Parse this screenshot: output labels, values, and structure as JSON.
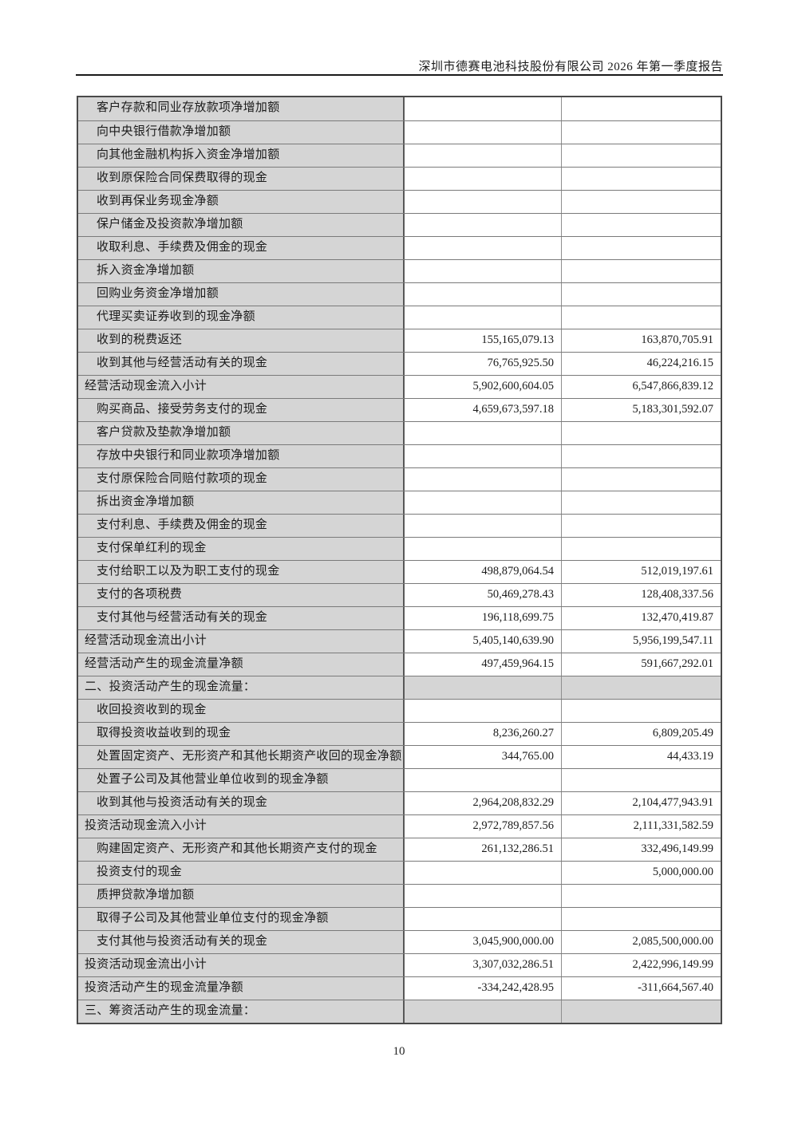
{
  "page": {
    "header_title": "深圳市德赛电池科技股份有限公司 2026 年第一季度报告",
    "page_number": "10"
  },
  "colors": {
    "cell_gray": "#d5d5d5",
    "border_dark": "#4a4a4a",
    "border_light": "#8f8f8f",
    "text": "#1b1b1b"
  },
  "table": {
    "rows": [
      {
        "label": "客户存款和同业存放款项净增加额",
        "indent": true,
        "section": false,
        "values": [
          "",
          ""
        ]
      },
      {
        "label": "向中央银行借款净增加额",
        "indent": true,
        "section": false,
        "values": [
          "",
          ""
        ]
      },
      {
        "label": "向其他金融机构拆入资金净增加额",
        "indent": true,
        "section": false,
        "values": [
          "",
          ""
        ]
      },
      {
        "label": "收到原保险合同保费取得的现金",
        "indent": true,
        "section": false,
        "values": [
          "",
          ""
        ]
      },
      {
        "label": "收到再保业务现金净额",
        "indent": true,
        "section": false,
        "values": [
          "",
          ""
        ]
      },
      {
        "label": "保户储金及投资款净增加额",
        "indent": true,
        "section": false,
        "values": [
          "",
          ""
        ]
      },
      {
        "label": "收取利息、手续费及佣金的现金",
        "indent": true,
        "section": false,
        "values": [
          "",
          ""
        ]
      },
      {
        "label": "拆入资金净增加额",
        "indent": true,
        "section": false,
        "values": [
          "",
          ""
        ]
      },
      {
        "label": "回购业务资金净增加额",
        "indent": true,
        "section": false,
        "values": [
          "",
          ""
        ]
      },
      {
        "label": "代理买卖证券收到的现金净额",
        "indent": true,
        "section": false,
        "values": [
          "",
          ""
        ]
      },
      {
        "label": "收到的税费返还",
        "indent": true,
        "section": false,
        "values": [
          "155,165,079.13",
          "163,870,705.91"
        ]
      },
      {
        "label": "收到其他与经营活动有关的现金",
        "indent": true,
        "section": false,
        "values": [
          "76,765,925.50",
          "46,224,216.15"
        ]
      },
      {
        "label": "经营活动现金流入小计",
        "indent": false,
        "section": false,
        "values": [
          "5,902,600,604.05",
          "6,547,866,839.12"
        ]
      },
      {
        "label": "购买商品、接受劳务支付的现金",
        "indent": true,
        "section": false,
        "values": [
          "4,659,673,597.18",
          "5,183,301,592.07"
        ]
      },
      {
        "label": "客户贷款及垫款净增加额",
        "indent": true,
        "section": false,
        "values": [
          "",
          ""
        ]
      },
      {
        "label": "存放中央银行和同业款项净增加额",
        "indent": true,
        "section": false,
        "values": [
          "",
          ""
        ]
      },
      {
        "label": "支付原保险合同赔付款项的现金",
        "indent": true,
        "section": false,
        "values": [
          "",
          ""
        ]
      },
      {
        "label": "拆出资金净增加额",
        "indent": true,
        "section": false,
        "values": [
          "",
          ""
        ]
      },
      {
        "label": "支付利息、手续费及佣金的现金",
        "indent": true,
        "section": false,
        "values": [
          "",
          ""
        ]
      },
      {
        "label": "支付保单红利的现金",
        "indent": true,
        "section": false,
        "values": [
          "",
          ""
        ]
      },
      {
        "label": "支付给职工以及为职工支付的现金",
        "indent": true,
        "section": false,
        "values": [
          "498,879,064.54",
          "512,019,197.61"
        ]
      },
      {
        "label": "支付的各项税费",
        "indent": true,
        "section": false,
        "values": [
          "50,469,278.43",
          "128,408,337.56"
        ]
      },
      {
        "label": "支付其他与经营活动有关的现金",
        "indent": true,
        "section": false,
        "values": [
          "196,118,699.75",
          "132,470,419.87"
        ]
      },
      {
        "label": "经营活动现金流出小计",
        "indent": false,
        "section": false,
        "values": [
          "5,405,140,639.90",
          "5,956,199,547.11"
        ]
      },
      {
        "label": "经营活动产生的现金流量净额",
        "indent": false,
        "section": false,
        "values": [
          "497,459,964.15",
          "591,667,292.01"
        ]
      },
      {
        "label": "二、投资活动产生的现金流量：",
        "indent": false,
        "section": true,
        "values": [
          "",
          ""
        ]
      },
      {
        "label": "收回投资收到的现金",
        "indent": true,
        "section": false,
        "values": [
          "",
          ""
        ]
      },
      {
        "label": "取得投资收益收到的现金",
        "indent": true,
        "section": false,
        "values": [
          "8,236,260.27",
          "6,809,205.49"
        ]
      },
      {
        "label": "处置固定资产、无形资产和其他长期资产收回的现金净额",
        "indent": true,
        "section": false,
        "values": [
          "344,765.00",
          "44,433.19"
        ]
      },
      {
        "label": "处置子公司及其他营业单位收到的现金净额",
        "indent": true,
        "section": false,
        "values": [
          "",
          ""
        ]
      },
      {
        "label": "收到其他与投资活动有关的现金",
        "indent": true,
        "section": false,
        "values": [
          "2,964,208,832.29",
          "2,104,477,943.91"
        ]
      },
      {
        "label": "投资活动现金流入小计",
        "indent": false,
        "section": false,
        "values": [
          "2,972,789,857.56",
          "2,111,331,582.59"
        ]
      },
      {
        "label": "购建固定资产、无形资产和其他长期资产支付的现金",
        "indent": true,
        "section": false,
        "values": [
          "261,132,286.51",
          "332,496,149.99"
        ]
      },
      {
        "label": "投资支付的现金",
        "indent": true,
        "section": false,
        "values": [
          "",
          "5,000,000.00"
        ]
      },
      {
        "label": "质押贷款净增加额",
        "indent": true,
        "section": false,
        "values": [
          "",
          ""
        ]
      },
      {
        "label": "取得子公司及其他营业单位支付的现金净额",
        "indent": true,
        "section": false,
        "values": [
          "",
          ""
        ]
      },
      {
        "label": "支付其他与投资活动有关的现金",
        "indent": true,
        "section": false,
        "values": [
          "3,045,900,000.00",
          "2,085,500,000.00"
        ]
      },
      {
        "label": "投资活动现金流出小计",
        "indent": false,
        "section": false,
        "values": [
          "3,307,032,286.51",
          "2,422,996,149.99"
        ]
      },
      {
        "label": "投资活动产生的现金流量净额",
        "indent": false,
        "section": false,
        "values": [
          "-334,242,428.95",
          "-311,664,567.40"
        ]
      },
      {
        "label": "三、筹资活动产生的现金流量：",
        "indent": false,
        "section": true,
        "values": [
          "",
          ""
        ]
      }
    ]
  }
}
